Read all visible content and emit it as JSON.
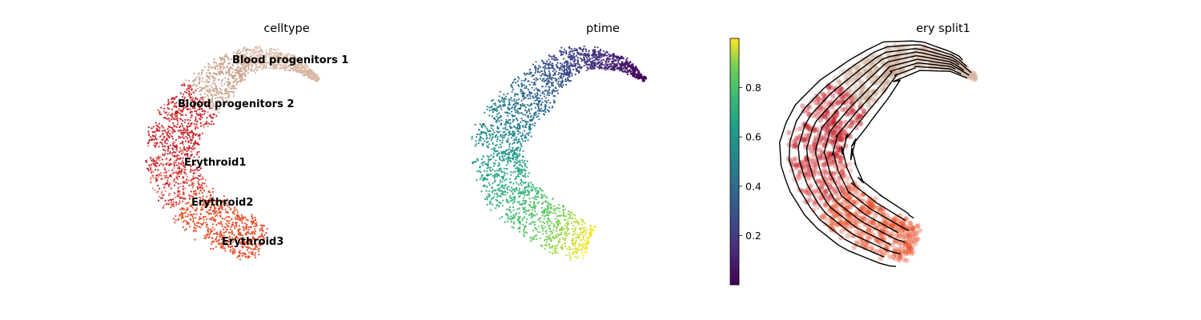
{
  "chart_data": [
    {
      "type": "scatter",
      "title": "celltype",
      "xlabel": "",
      "ylabel": "",
      "legend": "on data",
      "clusters": [
        {
          "name": "Blood progenitors 1",
          "color": "#d8b8a6"
        },
        {
          "name": "Blood progenitors 2",
          "color": "#c9a690"
        },
        {
          "name": "Erythroid1",
          "color": "#c4232a"
        },
        {
          "name": "Erythroid2",
          "color": "#ef7b72"
        },
        {
          "name": "Erythroid3",
          "color": "#e8502a"
        }
      ]
    },
    {
      "type": "scatter",
      "title": "ptime",
      "xlabel": "",
      "ylabel": "",
      "colormap": "viridis",
      "colorbar": {
        "min": 0.0,
        "max": 1.0,
        "ticks": [
          0.2,
          0.4,
          0.6,
          0.8
        ],
        "tick_labels": [
          "0.2",
          "0.4",
          "0.6",
          "0.8"
        ]
      }
    },
    {
      "type": "streamplot",
      "title": "ery split1",
      "xlabel": "",
      "ylabel": "",
      "background": "celltype",
      "flow_direction": "from Blood progenitors toward Erythroid3"
    }
  ]
}
